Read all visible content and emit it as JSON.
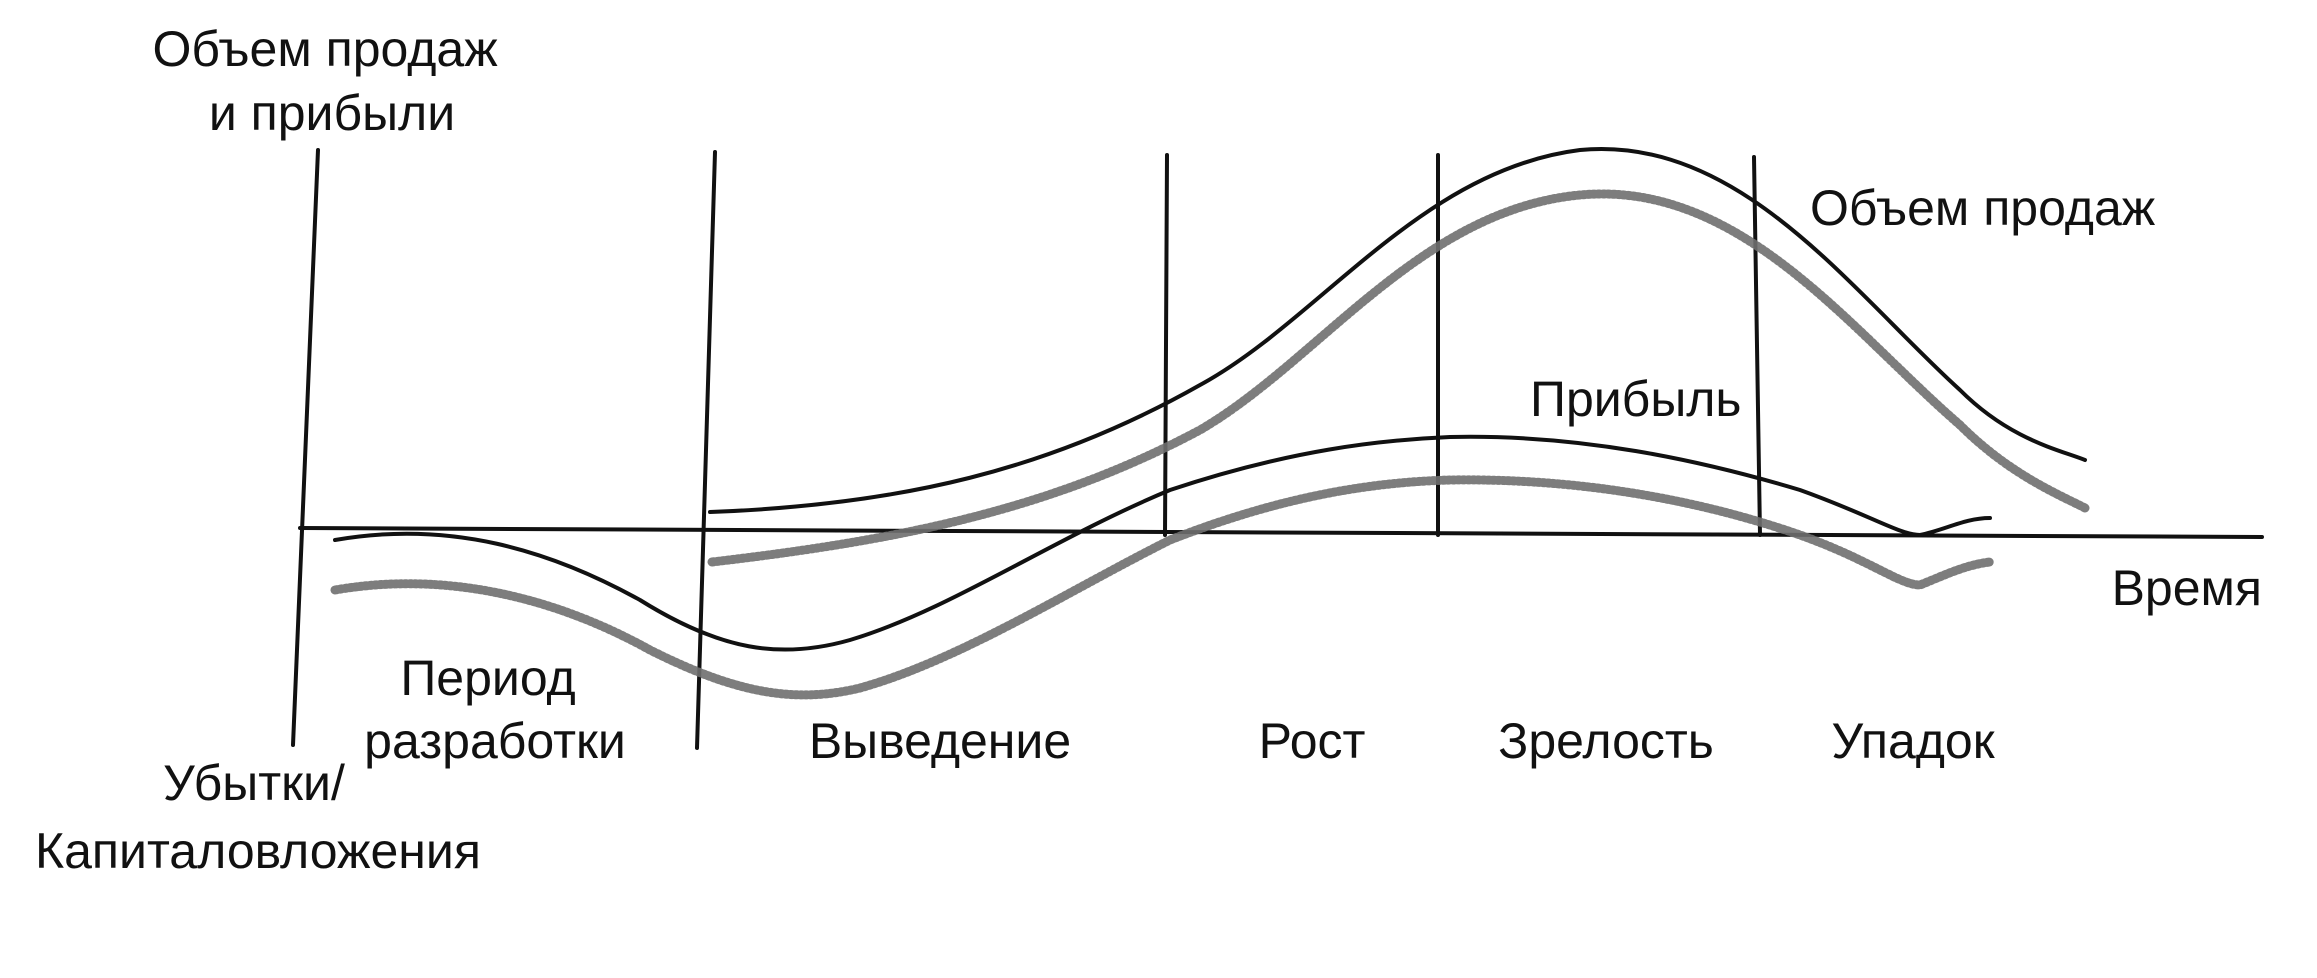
{
  "y_axis_label": [
    "Объем продаж",
    "и прибыли"
  ],
  "y_axis_negative_label": [
    "Убытки/",
    "Капиталовложения"
  ],
  "x_axis_label": "Время",
  "curve_labels": {
    "sales": "Объем продаж",
    "profit": "Прибыль"
  },
  "stages": [
    {
      "label": [
        "Период",
        "разработки"
      ]
    },
    {
      "label": [
        "Выведение"
      ]
    },
    {
      "label": [
        "Рост"
      ]
    },
    {
      "label": [
        "Зрелость"
      ]
    },
    {
      "label": [
        "Упадок"
      ]
    }
  ],
  "colors": {
    "ink": "#111111",
    "shadow": "#6f6f6f",
    "background": "#ffffff"
  }
}
